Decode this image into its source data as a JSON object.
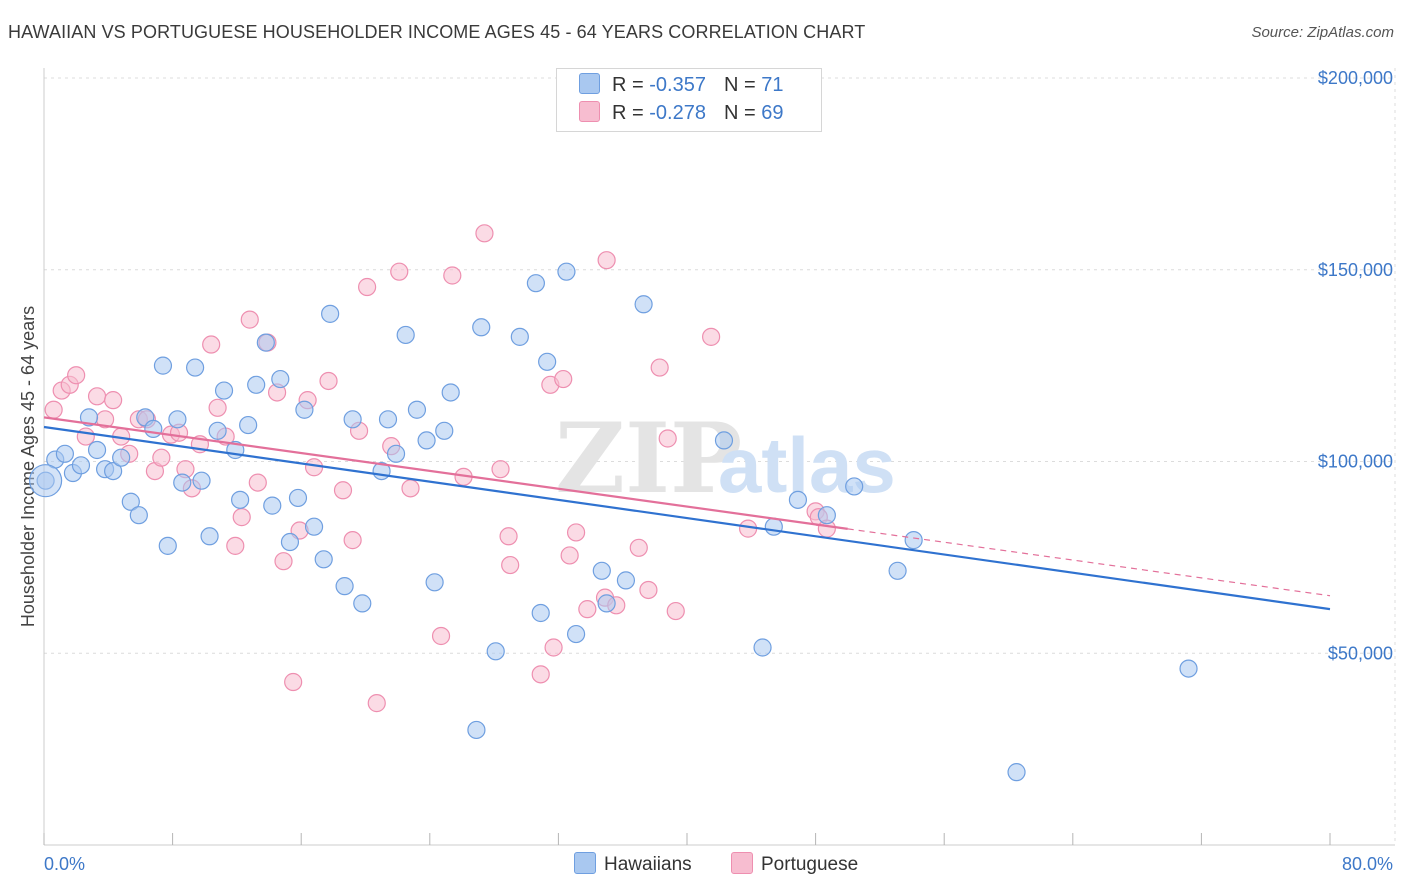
{
  "title": "HAWAIIAN VS PORTUGUESE HOUSEHOLDER INCOME AGES 45 - 64 YEARS CORRELATION CHART",
  "source": "Source: ZipAtlas.com",
  "watermark": {
    "zip": "ZIP",
    "atlas": "atlas"
  },
  "legend": {
    "r_label": "R =",
    "n_label": "N =",
    "rows": [
      {
        "series": "Hawaiians",
        "r": "-0.357",
        "n": "71"
      },
      {
        "series": "Portuguese",
        "r": "-0.278",
        "n": "69"
      }
    ]
  },
  "colors": {
    "hawaiians_fill": "#a9c8f0",
    "hawaiians_stroke": "#6f9fe0",
    "hawaiians_line": "#2f72d0",
    "portuguese_fill": "#f7bdd0",
    "portuguese_stroke": "#ee8fb0",
    "portuguese_line": "#e3709a",
    "tick_label": "#3d78c8",
    "grid": "#dcdcdc"
  },
  "chart_data": {
    "type": "scatter",
    "title": "HAWAIIAN VS PORTUGUESE HOUSEHOLDER INCOME AGES 45 - 64 YEARS CORRELATION CHART",
    "xlabel": "",
    "ylabel": "Householder Income Ages 45 - 64 years",
    "xlim": [
      0,
      80
    ],
    "ylim": [
      0,
      210000
    ],
    "x_tick_labels": [
      "0.0%",
      "80.0%"
    ],
    "y_ticks": [
      50000,
      100000,
      150000,
      200000
    ],
    "y_tick_labels": [
      "$50,000",
      "$100,000",
      "$150,000",
      "$200,000"
    ],
    "grid": true,
    "legend_position": "bottom-center",
    "series": [
      {
        "name": "Hawaiians",
        "trend": {
          "x": [
            0,
            80
          ],
          "y": [
            109000,
            61500
          ],
          "dashed_from": null
        },
        "points": [
          [
            0.1,
            95000
          ],
          [
            0.7,
            100500
          ],
          [
            1.3,
            102000
          ],
          [
            1.8,
            97000
          ],
          [
            2.3,
            99000
          ],
          [
            2.8,
            111500
          ],
          [
            3.3,
            103000
          ],
          [
            3.8,
            98000
          ],
          [
            4.3,
            97500
          ],
          [
            4.8,
            101000
          ],
          [
            5.4,
            89500
          ],
          [
            5.9,
            86000
          ],
          [
            6.3,
            111500
          ],
          [
            6.8,
            108500
          ],
          [
            7.4,
            125000
          ],
          [
            7.7,
            78000
          ],
          [
            8.3,
            111000
          ],
          [
            8.6,
            94500
          ],
          [
            9.4,
            124500
          ],
          [
            9.8,
            95000
          ],
          [
            10.3,
            80500
          ],
          [
            10.8,
            108000
          ],
          [
            11.2,
            118500
          ],
          [
            11.9,
            103000
          ],
          [
            12.2,
            90000
          ],
          [
            12.7,
            109500
          ],
          [
            13.2,
            120000
          ],
          [
            13.8,
            131000
          ],
          [
            14.2,
            88500
          ],
          [
            14.7,
            121500
          ],
          [
            15.3,
            79000
          ],
          [
            15.8,
            90500
          ],
          [
            16.2,
            113500
          ],
          [
            16.8,
            83000
          ],
          [
            17.4,
            74500
          ],
          [
            17.8,
            138500
          ],
          [
            18.7,
            67500
          ],
          [
            19.2,
            111000
          ],
          [
            19.8,
            63000
          ],
          [
            21.0,
            97500
          ],
          [
            21.4,
            111000
          ],
          [
            21.9,
            102000
          ],
          [
            22.5,
            133000
          ],
          [
            23.2,
            113500
          ],
          [
            23.8,
            105500
          ],
          [
            24.3,
            68500
          ],
          [
            24.9,
            108000
          ],
          [
            25.3,
            118000
          ],
          [
            26.9,
            30000
          ],
          [
            27.2,
            135000
          ],
          [
            28.1,
            50500
          ],
          [
            29.6,
            132500
          ],
          [
            30.6,
            146500
          ],
          [
            30.9,
            60500
          ],
          [
            31.3,
            126000
          ],
          [
            32.5,
            149500
          ],
          [
            33.1,
            55000
          ],
          [
            34.7,
            71500
          ],
          [
            35.0,
            63000
          ],
          [
            36.2,
            69000
          ],
          [
            37.3,
            141000
          ],
          [
            42.3,
            105500
          ],
          [
            44.7,
            51500
          ],
          [
            45.4,
            83000
          ],
          [
            46.9,
            90000
          ],
          [
            48.7,
            86000
          ],
          [
            50.4,
            93500
          ],
          [
            53.1,
            71500
          ],
          [
            54.1,
            79500
          ],
          [
            60.5,
            19000
          ],
          [
            71.2,
            46000
          ]
        ]
      },
      {
        "name": "Portuguese",
        "trend": {
          "x": [
            0,
            80
          ],
          "y": [
            111500,
            65000
          ],
          "dashed_from": 50
        },
        "points": [
          [
            0.6,
            113500
          ],
          [
            1.1,
            118500
          ],
          [
            1.6,
            120000
          ],
          [
            2.0,
            122500
          ],
          [
            2.6,
            106500
          ],
          [
            3.3,
            117000
          ],
          [
            3.8,
            111000
          ],
          [
            4.3,
            116000
          ],
          [
            4.8,
            106500
          ],
          [
            5.3,
            102000
          ],
          [
            5.9,
            111000
          ],
          [
            6.4,
            111000
          ],
          [
            6.9,
            97500
          ],
          [
            7.3,
            101000
          ],
          [
            7.9,
            107000
          ],
          [
            8.4,
            107500
          ],
          [
            8.8,
            98000
          ],
          [
            9.2,
            93000
          ],
          [
            9.7,
            104500
          ],
          [
            10.4,
            130500
          ],
          [
            10.8,
            114000
          ],
          [
            11.3,
            106500
          ],
          [
            11.9,
            78000
          ],
          [
            12.3,
            85500
          ],
          [
            12.8,
            137000
          ],
          [
            13.3,
            94500
          ],
          [
            13.9,
            131000
          ],
          [
            14.5,
            118000
          ],
          [
            14.9,
            74000
          ],
          [
            15.5,
            42500
          ],
          [
            15.9,
            82000
          ],
          [
            16.4,
            116000
          ],
          [
            16.8,
            98500
          ],
          [
            17.7,
            121000
          ],
          [
            18.6,
            92500
          ],
          [
            19.2,
            79500
          ],
          [
            19.6,
            108000
          ],
          [
            20.1,
            145500
          ],
          [
            20.7,
            37000
          ],
          [
            21.6,
            104000
          ],
          [
            22.1,
            149500
          ],
          [
            22.8,
            93000
          ],
          [
            24.7,
            54500
          ],
          [
            25.4,
            148500
          ],
          [
            26.1,
            96000
          ],
          [
            27.4,
            159500
          ],
          [
            28.4,
            98000
          ],
          [
            28.9,
            80500
          ],
          [
            29.0,
            73000
          ],
          [
            30.9,
            44500
          ],
          [
            31.5,
            120000
          ],
          [
            31.7,
            51500
          ],
          [
            32.3,
            121500
          ],
          [
            32.7,
            75500
          ],
          [
            33.1,
            81500
          ],
          [
            33.8,
            61500
          ],
          [
            34.9,
            64500
          ],
          [
            35.0,
            152500
          ],
          [
            35.6,
            62500
          ],
          [
            37.0,
            77500
          ],
          [
            37.6,
            66500
          ],
          [
            38.3,
            124500
          ],
          [
            38.8,
            106000
          ],
          [
            39.3,
            61000
          ],
          [
            41.5,
            132500
          ],
          [
            43.8,
            82500
          ],
          [
            48.0,
            87000
          ],
          [
            48.2,
            85500
          ],
          [
            48.7,
            82500
          ]
        ]
      }
    ]
  }
}
